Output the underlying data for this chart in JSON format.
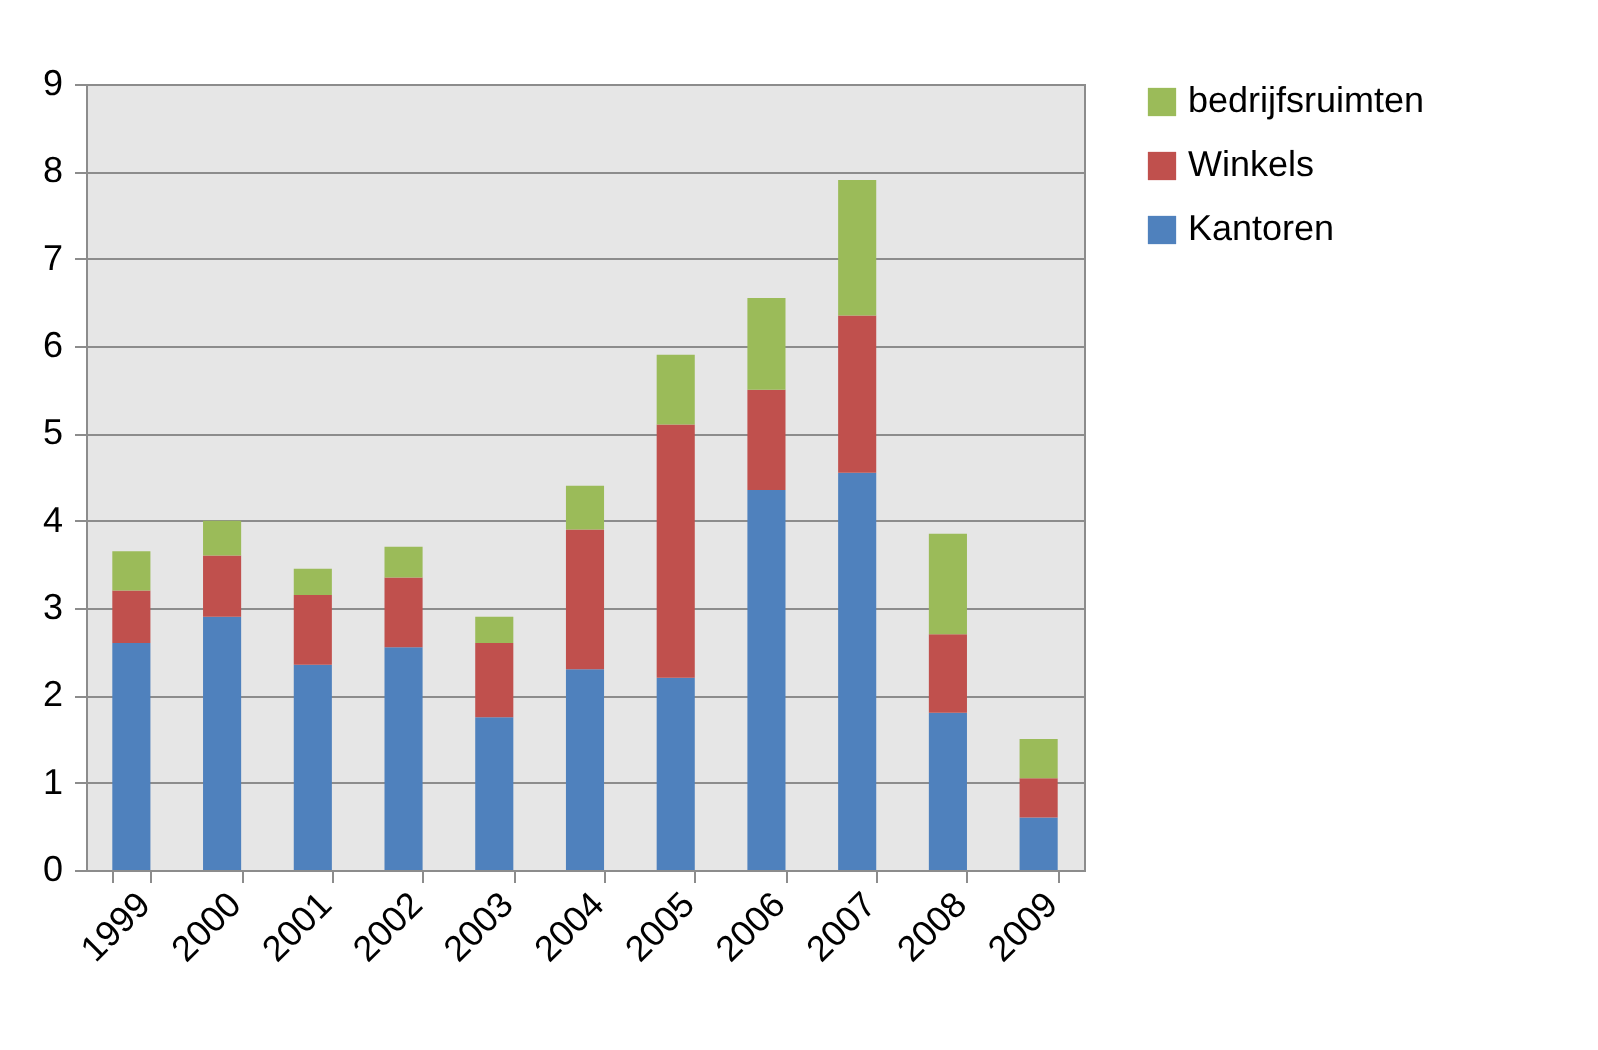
{
  "chart_data": {
    "type": "bar",
    "stacked": true,
    "categories": [
      "1999",
      "2000",
      "2001",
      "2002",
      "2003",
      "2004",
      "2005",
      "2006",
      "2007",
      "2008",
      "2009"
    ],
    "series": [
      {
        "name": "Kantoren",
        "color": "#4f81bd",
        "values": [
          2.6,
          2.9,
          2.35,
          2.55,
          1.75,
          2.3,
          2.2,
          4.35,
          4.55,
          1.8,
          0.6
        ]
      },
      {
        "name": "Winkels",
        "color": "#c0504d",
        "values": [
          0.6,
          0.7,
          0.8,
          0.8,
          0.85,
          1.6,
          2.9,
          1.15,
          1.8,
          0.9,
          0.45
        ]
      },
      {
        "name": "bedrijfsruimten",
        "color": "#9bbb59",
        "values": [
          0.45,
          0.4,
          0.3,
          0.35,
          0.3,
          0.5,
          0.8,
          1.05,
          1.55,
          1.15,
          0.45
        ]
      }
    ],
    "ylim": [
      0,
      9
    ],
    "yticks": [
      0,
      1,
      2,
      3,
      4,
      5,
      6,
      7,
      8,
      9
    ],
    "grid": "y",
    "legend": "right"
  }
}
